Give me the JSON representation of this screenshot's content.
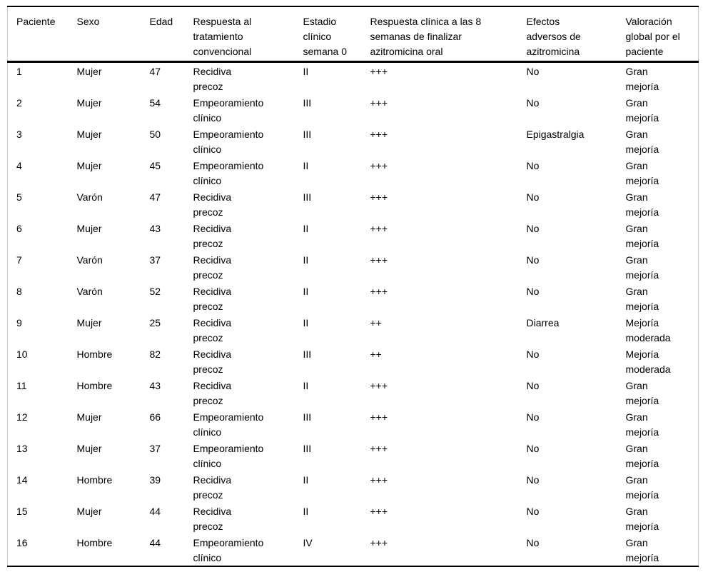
{
  "colors": {
    "text": "#000000",
    "rule": "#000000",
    "hairline": "#cccccc",
    "background": "#ffffff"
  },
  "chart_data": {
    "type": "table",
    "columns": [
      {
        "key": "paciente",
        "label": "Paciente"
      },
      {
        "key": "sexo",
        "label": "Sexo"
      },
      {
        "key": "edad",
        "label": "Edad"
      },
      {
        "key": "respuesta-tratamiento",
        "label": "Respuesta al\ntratamiento\nconvencional"
      },
      {
        "key": "estadio-clinico",
        "label": "Estadio\nclínico\nsemana 0"
      },
      {
        "key": "respuesta-clinica",
        "label": "Respuesta clínica a las 8\nsemanas de finalizar\nazitromicina oral"
      },
      {
        "key": "efectos-adversos",
        "label": "Efectos\nadversos de\nazitromicina"
      },
      {
        "key": "valoracion-global",
        "label": "Valoración\nglobal por el\npaciente"
      }
    ],
    "rows": [
      [
        "1",
        "Mujer",
        "47",
        "Recidiva\nprecoz",
        "II",
        "+++",
        "No",
        "Gran\nmejoría"
      ],
      [
        "2",
        "Mujer",
        "54",
        "Empeoramiento\nclínico",
        "III",
        "+++",
        "No",
        "Gran\nmejoría"
      ],
      [
        "3",
        "Mujer",
        "50",
        "Empeoramiento\nclínico",
        "III",
        "+++",
        "Epigastralgia",
        "Gran\nmejoría"
      ],
      [
        "4",
        "Mujer",
        "45",
        "Empeoramiento\nclínico",
        "II",
        "+++",
        "No",
        "Gran\nmejoría"
      ],
      [
        "5",
        "Varón",
        "47",
        "Recidiva\nprecoz",
        "III",
        "+++",
        "No",
        "Gran\nmejoría"
      ],
      [
        "6",
        "Mujer",
        "43",
        "Recidiva\nprecoz",
        "II",
        "+++",
        "No",
        "Gran\nmejoría"
      ],
      [
        "7",
        "Varón",
        "37",
        "Recidiva\nprecoz",
        "II",
        "+++",
        "No",
        "Gran\nmejoría"
      ],
      [
        "8",
        "Varón",
        "52",
        "Recidiva\nprecoz",
        "II",
        "+++",
        "No",
        "Gran\nmejoría"
      ],
      [
        "9",
        "Mujer",
        "25",
        "Recidiva\nprecoz",
        "II",
        "++",
        "Diarrea",
        "Mejoría\nmoderada"
      ],
      [
        "10",
        "Hombre",
        "82",
        "Recidiva\nprecoz",
        "III",
        "++",
        "No",
        "Mejoría\nmoderada"
      ],
      [
        "11",
        "Hombre",
        "43",
        "Recidiva\nprecoz",
        "II",
        "+++",
        "No",
        "Gran\nmejoría"
      ],
      [
        "12",
        "Mujer",
        "66",
        "Empeoramiento\nclínico",
        "III",
        "+++",
        "No",
        "Gran\nmejoría"
      ],
      [
        "13",
        "Mujer",
        "37",
        "Empeoramiento\nclínico",
        "III",
        "+++",
        "No",
        "Gran\nmejoría"
      ],
      [
        "14",
        "Hombre",
        "39",
        "Recidiva\nprecoz",
        "II",
        "+++",
        "No",
        "Gran\nmejoría"
      ],
      [
        "15",
        "Mujer",
        "44",
        "Recidiva\nprecoz",
        "II",
        "+++",
        "No",
        "Gran\nmejoría"
      ],
      [
        "16",
        "Hombre",
        "44",
        "Empeoramiento\nclínico",
        "IV",
        "+++",
        "No",
        "Gran\nmejoría"
      ]
    ]
  }
}
